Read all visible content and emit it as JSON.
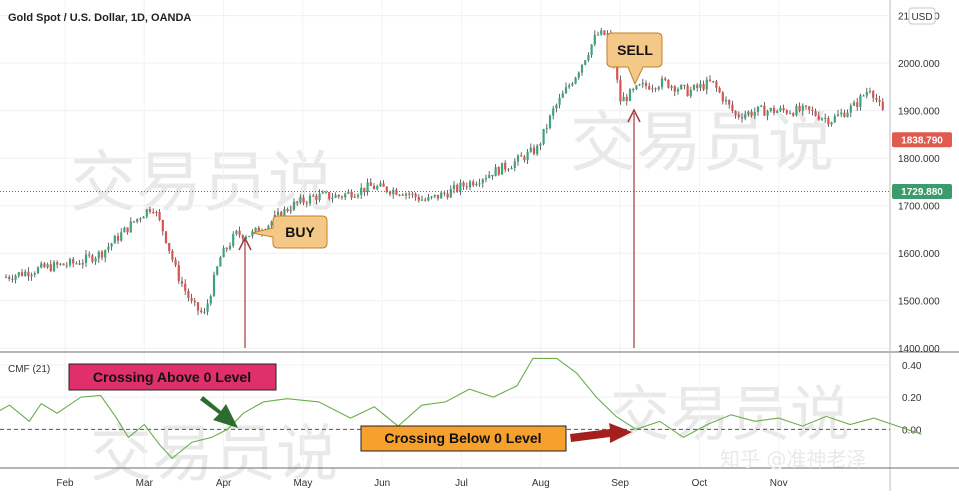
{
  "chart_data": {
    "type": "candlestick",
    "title": "Gold Spot / U.S. Dollar, 1D, OANDA",
    "currency": "USD",
    "price_axis": {
      "ticks": [
        2100,
        2000,
        1900,
        1800,
        1700,
        1600,
        1500,
        1400
      ],
      "tick_labels": [
        "2100.000",
        "2000.000",
        "1900.000",
        "1800.000",
        "1700.000",
        "1600.000",
        "1500.000",
        "1400.000"
      ],
      "ylim": [
        1392,
        2133
      ]
    },
    "last_price": {
      "label": "1838.790",
      "value": 1838.79,
      "color": "#e05a4f"
    },
    "ref_price": {
      "label": "1729.880",
      "value": 1729.88,
      "color": "#3b9b6b"
    },
    "months": [
      "Feb",
      "Mar",
      "Apr",
      "May",
      "Jun",
      "Jul",
      "Aug",
      "Sep",
      "Oct",
      "Nov"
    ],
    "price_path": [
      {
        "m": 0.0,
        "p": 1550
      },
      {
        "m": 0.5,
        "p": 1570
      },
      {
        "m": 0.9,
        "p": 1580
      },
      {
        "m": 1.2,
        "p": 1600
      },
      {
        "m": 1.45,
        "p": 1640
      },
      {
        "m": 1.7,
        "p": 1680
      },
      {
        "m": 1.85,
        "p": 1700
      },
      {
        "m": 2.0,
        "p": 1640
      },
      {
        "m": 2.15,
        "p": 1560
      },
      {
        "m": 2.35,
        "p": 1490
      },
      {
        "m": 2.5,
        "p": 1470
      },
      {
        "m": 2.7,
        "p": 1590
      },
      {
        "m": 2.9,
        "p": 1640
      },
      {
        "m": 3.1,
        "p": 1640
      },
      {
        "m": 3.3,
        "p": 1660
      },
      {
        "m": 3.6,
        "p": 1700
      },
      {
        "m": 3.9,
        "p": 1720
      },
      {
        "m": 4.2,
        "p": 1720
      },
      {
        "m": 4.6,
        "p": 1740
      },
      {
        "m": 5.0,
        "p": 1730
      },
      {
        "m": 5.3,
        "p": 1710
      },
      {
        "m": 5.6,
        "p": 1730
      },
      {
        "m": 6.0,
        "p": 1760
      },
      {
        "m": 6.4,
        "p": 1790
      },
      {
        "m": 6.7,
        "p": 1820
      },
      {
        "m": 6.9,
        "p": 1900
      },
      {
        "m": 7.2,
        "p": 1980
      },
      {
        "m": 7.45,
        "p": 2060
      },
      {
        "m": 7.6,
        "p": 2060
      },
      {
        "m": 7.75,
        "p": 1920
      },
      {
        "m": 8.0,
        "p": 1950
      },
      {
        "m": 8.3,
        "p": 1960
      },
      {
        "m": 8.6,
        "p": 1940
      },
      {
        "m": 8.9,
        "p": 1960
      },
      {
        "m": 9.2,
        "p": 1890
      },
      {
        "m": 9.5,
        "p": 1900
      },
      {
        "m": 9.8,
        "p": 1900
      },
      {
        "m": 10.1,
        "p": 1900
      },
      {
        "m": 10.4,
        "p": 1880
      },
      {
        "m": 10.7,
        "p": 1910
      },
      {
        "m": 10.9,
        "p": 1950
      },
      {
        "m": 11.1,
        "p": 1880
      },
      {
        "m": 11.4,
        "p": 1870
      },
      {
        "m": 11.6,
        "p": 1800
      },
      {
        "m": 11.75,
        "p": 1780
      },
      {
        "m": 11.9,
        "p": 1840
      }
    ],
    "indicator": {
      "name": "CMF (21)",
      "ticks": [
        0.4,
        0.2,
        0.0
      ],
      "tick_labels": [
        "0.40",
        "0.20",
        "0.00"
      ],
      "ylim": [
        -0.24,
        0.48
      ],
      "zero_line": 0.0,
      "color": "#6bae4a",
      "path": [
        {
          "m": 0.0,
          "v": 0.07
        },
        {
          "m": 0.3,
          "v": 0.15
        },
        {
          "m": 0.55,
          "v": 0.05
        },
        {
          "m": 0.7,
          "v": 0.16
        },
        {
          "m": 0.9,
          "v": 0.1
        },
        {
          "m": 1.2,
          "v": 0.2
        },
        {
          "m": 1.45,
          "v": 0.21
        },
        {
          "m": 1.65,
          "v": 0.07
        },
        {
          "m": 1.8,
          "v": -0.05
        },
        {
          "m": 2.0,
          "v": 0.03
        },
        {
          "m": 2.2,
          "v": -0.1
        },
        {
          "m": 2.35,
          "v": -0.18
        },
        {
          "m": 2.6,
          "v": -0.08
        },
        {
          "m": 2.85,
          "v": -0.05
        },
        {
          "m": 3.05,
          "v": 0.0
        },
        {
          "m": 3.25,
          "v": 0.1
        },
        {
          "m": 3.5,
          "v": 0.17
        },
        {
          "m": 3.8,
          "v": 0.19
        },
        {
          "m": 4.2,
          "v": 0.17
        },
        {
          "m": 4.6,
          "v": 0.07
        },
        {
          "m": 4.9,
          "v": 0.14
        },
        {
          "m": 5.2,
          "v": 0.02
        },
        {
          "m": 5.5,
          "v": 0.15
        },
        {
          "m": 5.8,
          "v": 0.17
        },
        {
          "m": 6.1,
          "v": 0.25
        },
        {
          "m": 6.4,
          "v": 0.2
        },
        {
          "m": 6.7,
          "v": 0.27
        },
        {
          "m": 6.9,
          "v": 0.44
        },
        {
          "m": 7.2,
          "v": 0.44
        },
        {
          "m": 7.45,
          "v": 0.35
        },
        {
          "m": 7.7,
          "v": 0.2
        },
        {
          "m": 7.95,
          "v": 0.08
        },
        {
          "m": 8.2,
          "v": 0.0
        },
        {
          "m": 8.5,
          "v": 0.05
        },
        {
          "m": 8.8,
          "v": -0.05
        },
        {
          "m": 9.1,
          "v": 0.03
        },
        {
          "m": 9.4,
          "v": 0.09
        },
        {
          "m": 9.7,
          "v": 0.05
        },
        {
          "m": 10.0,
          "v": 0.07
        },
        {
          "m": 10.3,
          "v": 0.02
        },
        {
          "m": 10.6,
          "v": 0.08
        },
        {
          "m": 10.9,
          "v": 0.03
        },
        {
          "m": 11.2,
          "v": 0.07
        },
        {
          "m": 11.5,
          "v": 0.02
        },
        {
          "m": 11.8,
          "v": -0.03
        }
      ]
    },
    "annotations": {
      "buy": "BUY",
      "sell": "SELL",
      "crossing_above": "Crossing Above 0 Level",
      "crossing_below": "Crossing Below 0 Level"
    },
    "watermark": [
      "交易员说",
      "知乎 @准神老泽"
    ],
    "colors": {
      "up": "#3fa37a",
      "down": "#d9534f",
      "wick": "#444444",
      "callout": "#f4c987",
      "callout_border": "#c47f2a",
      "magenta_label": "#e0306b",
      "orange_label": "#f6a02d",
      "arrow_red": "#a3201c",
      "arrow_green": "#2e6b2e",
      "vline": "#a33a3a"
    }
  }
}
